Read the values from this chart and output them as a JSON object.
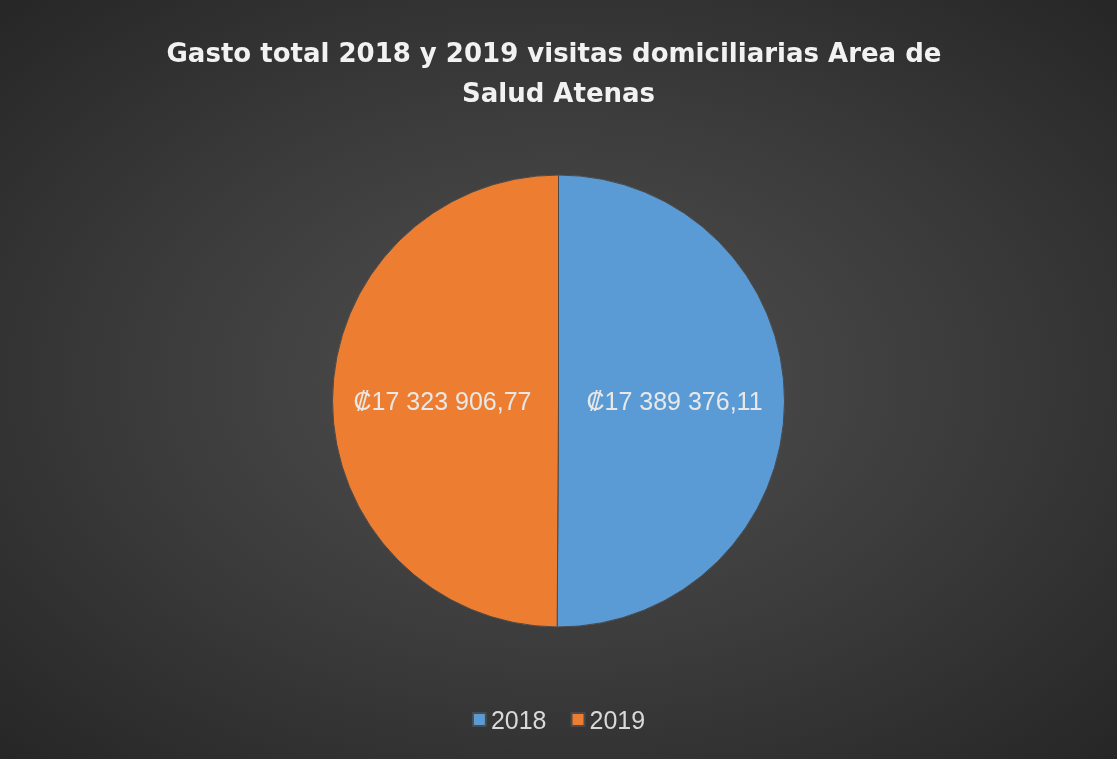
{
  "chart_data": {
    "type": "pie",
    "title": "Gasto total 2018 y 2019 visitas domiciliarias Area de Salud Atenas",
    "categories": [
      "2018",
      "2019"
    ],
    "values": [
      17389376.11,
      17323906.77
    ],
    "value_labels": [
      "₡17 389 376,11",
      "₡17 323 906,77"
    ],
    "colors": [
      "#5b9bd5",
      "#ed7d31"
    ],
    "legend": "bottom"
  }
}
